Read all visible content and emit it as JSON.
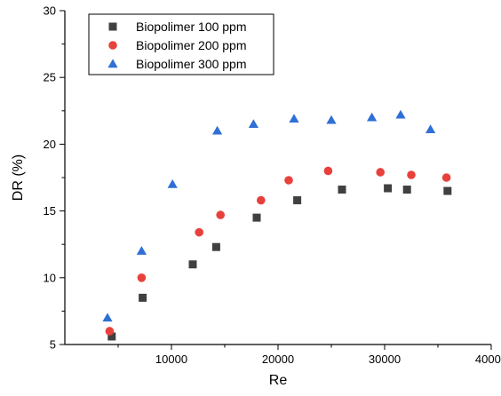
{
  "chart_data": {
    "type": "scatter",
    "title": "",
    "xlabel": "Re",
    "ylabel": "DR (%)",
    "xlim": [
      0,
      40000
    ],
    "ylim": [
      5,
      30
    ],
    "xticks": [
      10000,
      20000,
      30000,
      40000
    ],
    "yticks": [
      5,
      10,
      15,
      20,
      25,
      30
    ],
    "grid": false,
    "legend_position": "top-left",
    "series": [
      {
        "name": "Biopolimer 100 ppm",
        "marker": "square",
        "color": "#404040",
        "x": [
          4400,
          7300,
          12000,
          14200,
          18000,
          21800,
          26000,
          30300,
          32100,
          35900
        ],
        "y": [
          5.6,
          8.5,
          11.0,
          12.3,
          14.5,
          15.8,
          16.6,
          16.7,
          16.6,
          16.5
        ]
      },
      {
        "name": "Biopolimer 200 ppm",
        "marker": "circle",
        "color": "#e8413c",
        "x": [
          4200,
          7200,
          12600,
          14600,
          18400,
          21000,
          24700,
          29600,
          32500,
          35800
        ],
        "y": [
          6.0,
          10.0,
          13.4,
          14.7,
          15.8,
          17.3,
          18.0,
          17.9,
          17.7,
          17.5
        ]
      },
      {
        "name": "Biopolimer 300 ppm",
        "marker": "triangle",
        "color": "#2f6fd6",
        "x": [
          4000,
          7200,
          10100,
          14300,
          17700,
          21500,
          25000,
          28800,
          31500,
          34300
        ],
        "y": [
          7.0,
          12.0,
          17.0,
          21.0,
          21.5,
          21.9,
          21.8,
          22.0,
          22.2,
          21.1
        ]
      }
    ]
  }
}
